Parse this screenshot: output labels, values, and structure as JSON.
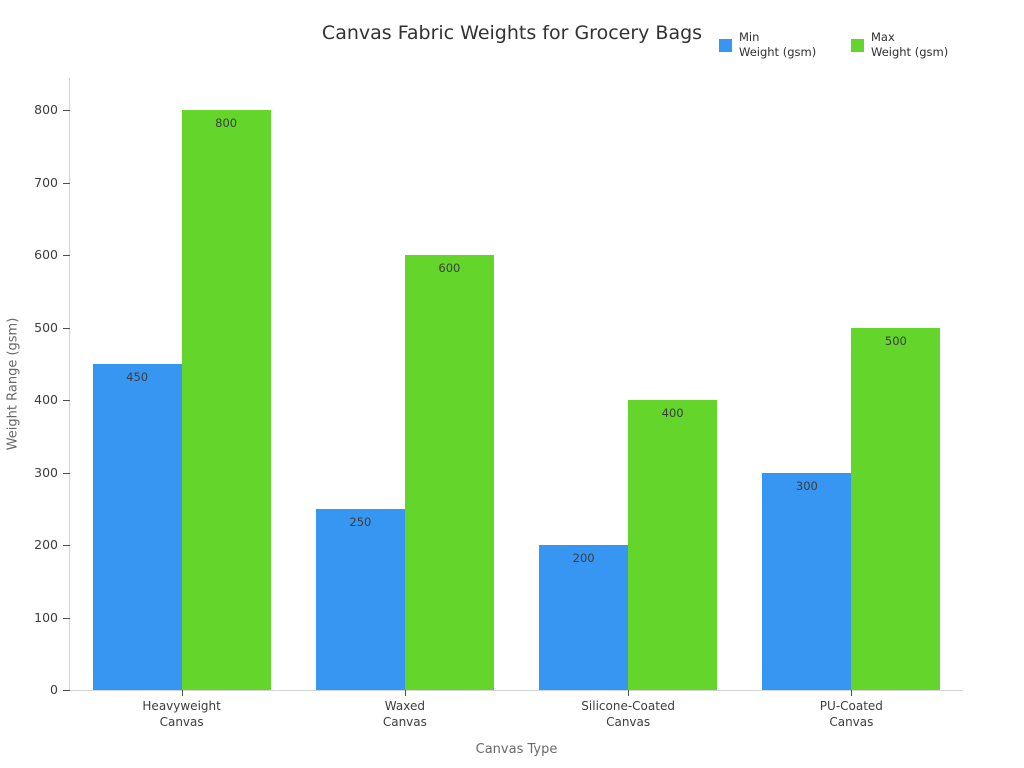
{
  "colors": {
    "background": "#ffffff",
    "min_series": "#3796f2",
    "max_series": "#64d52a",
    "title_text": "#323232",
    "tick_label_text": "#3d3d3d",
    "axis_title_text": "#696969",
    "bar_label_text": "#3d3d3d",
    "axis_line": "#d4d4d4",
    "tick_mark": "#4f4f4f"
  },
  "chart_data": {
    "type": "bar",
    "title": "Canvas Fabric Weights for Grocery Bags",
    "xlabel": "Canvas Type",
    "ylabel": "Weight Range (gsm)",
    "categories": [
      "Heavyweight Canvas",
      "Waxed Canvas",
      "Silicone-Coated Canvas",
      "PU-Coated Canvas"
    ],
    "category_tick_lines": [
      [
        "Heavyweight",
        "Canvas"
      ],
      [
        "Waxed",
        "Canvas"
      ],
      [
        "Silicone-Coated",
        "Canvas"
      ],
      [
        "PU-Coated",
        "Canvas"
      ]
    ],
    "series": [
      {
        "name": "Min Weight (gsm)",
        "legend_lines": [
          "Min",
          "Weight (gsm)"
        ],
        "color": "#3796f2",
        "values": [
          450,
          250,
          200,
          300
        ]
      },
      {
        "name": "Max Weight (gsm)",
        "legend_lines": [
          "Max",
          "Weight (gsm)"
        ],
        "color": "#64d52a",
        "values": [
          800,
          600,
          400,
          500
        ]
      }
    ],
    "ylim": [
      0,
      800
    ],
    "yticks": [
      0,
      100,
      200,
      300,
      400,
      500,
      600,
      700,
      800
    ],
    "grid": false,
    "bar_value_labels": true,
    "legend_position": "top-right"
  }
}
